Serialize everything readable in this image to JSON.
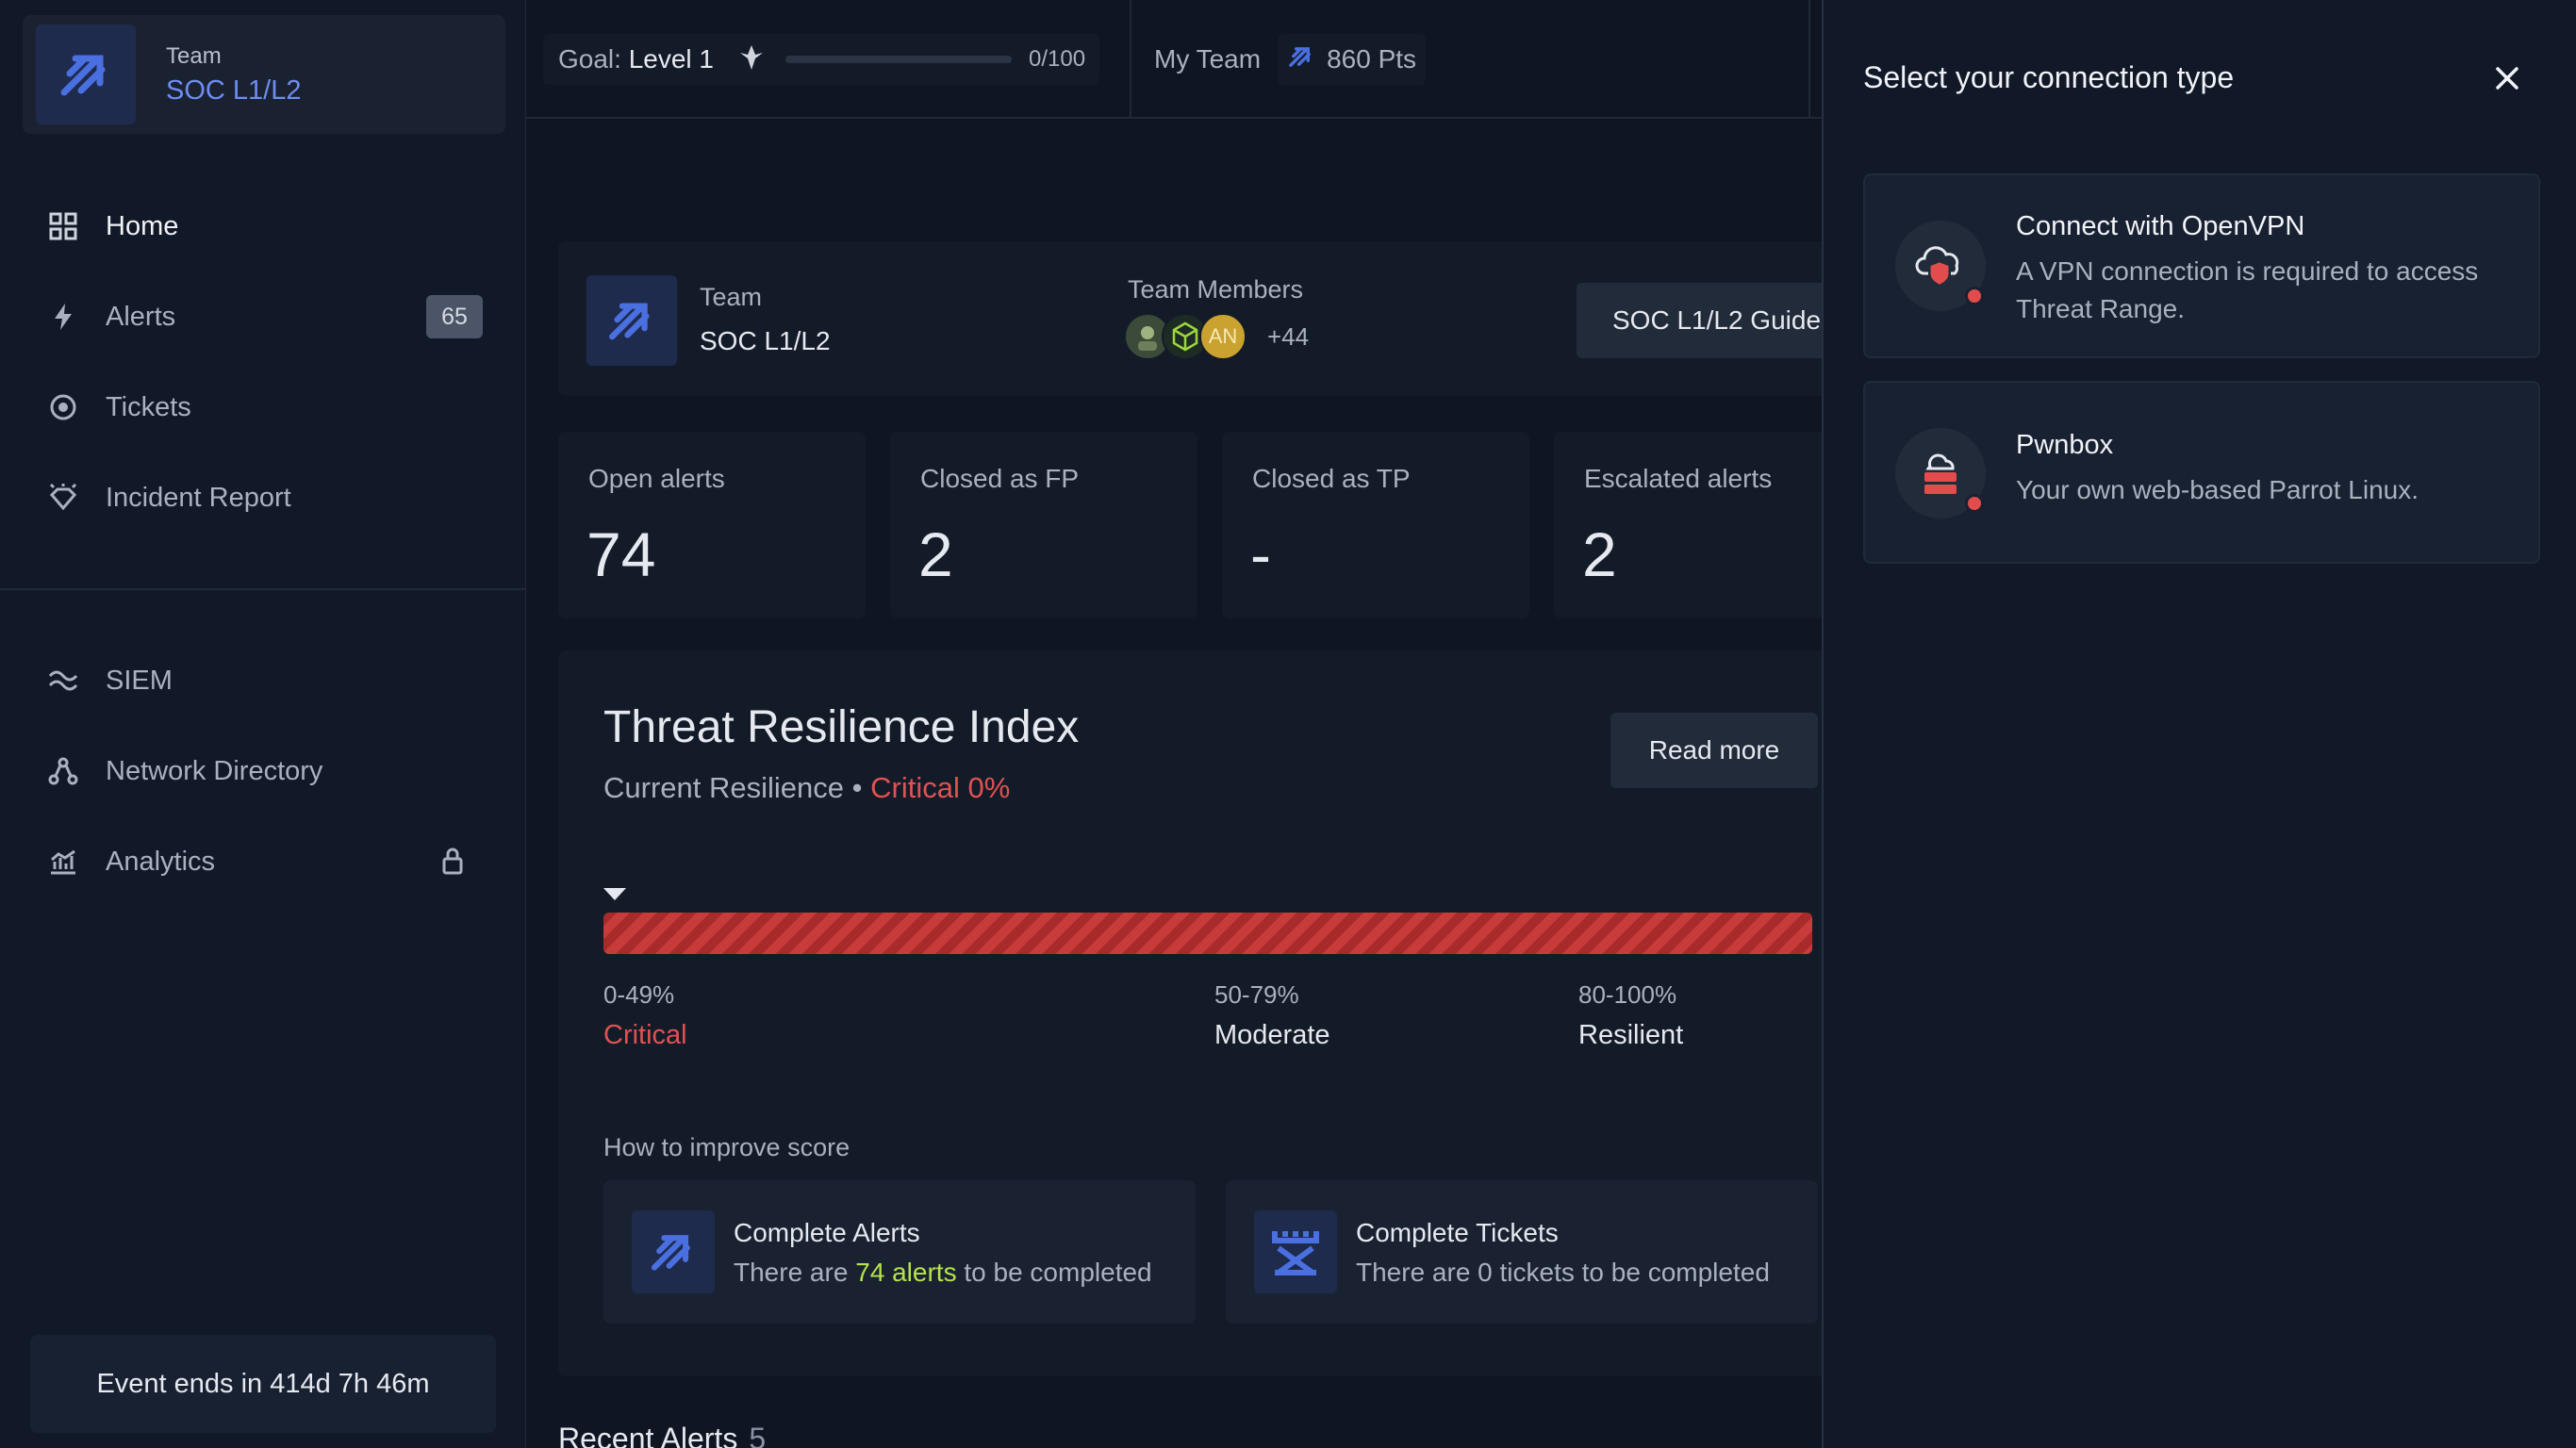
{
  "sidebar": {
    "team_label": "Team",
    "team_name": "SOC L1/L2",
    "nav": [
      {
        "label": "Home"
      },
      {
        "label": "Alerts",
        "badge": "65"
      },
      {
        "label": "Tickets"
      },
      {
        "label": "Incident Report"
      },
      {
        "label": "SIEM"
      },
      {
        "label": "Network Directory"
      },
      {
        "label": "Analytics"
      }
    ],
    "event": "Event ends in 414d 7h 46m"
  },
  "topbar": {
    "goal_prefix": "Goal:",
    "goal_value": "Level 1",
    "goal_progress_text": "0/100",
    "goal_progress": 0,
    "my_team_label": "My Team",
    "points": "860 Pts"
  },
  "team_row": {
    "label": "Team",
    "name": "SOC L1/L2",
    "members_label": "Team Members",
    "avatar_initials": "AN",
    "more_members": "+44",
    "guide_button": "SOC L1/L2 Guide"
  },
  "stats": [
    {
      "label": "Open alerts",
      "value": "74"
    },
    {
      "label": "Closed as FP",
      "value": "2"
    },
    {
      "label": "Closed as TP",
      "value": "-"
    },
    {
      "label": "Escalated alerts",
      "value": "2"
    }
  ],
  "resilience": {
    "title": "Threat Resilience Index",
    "current_label": "Current Resilience",
    "separator": "•",
    "current_value": "Critical 0%",
    "current_percent": 0,
    "read_more": "Read more",
    "ranges": [
      {
        "range": "0-49%",
        "name": "Critical"
      },
      {
        "range": "50-79%",
        "name": "Moderate"
      },
      {
        "range": "80-100%",
        "name": "Resilient"
      }
    ],
    "how_to_improve": "How to improve score",
    "improve": [
      {
        "title": "Complete Alerts",
        "pre": "There are",
        "highlight": "74 alerts",
        "post": "to be completed"
      },
      {
        "title": "Complete Tickets",
        "text": "There are 0 tickets to be completed"
      }
    ]
  },
  "recent_alerts": {
    "label": "Recent Alerts",
    "count": "5"
  },
  "panel": {
    "title": "Select your connection type",
    "options": [
      {
        "title": "Connect with OpenVPN",
        "desc": "A VPN connection is required to access Threat Range."
      },
      {
        "title": "Pwnbox",
        "desc": "Your own web-based Parrot Linux."
      }
    ]
  },
  "colors": {
    "accent": "#6f8cf2",
    "critical": "#e05252",
    "highlight": "#b6e24a",
    "status_dot": "#e24c4c"
  }
}
